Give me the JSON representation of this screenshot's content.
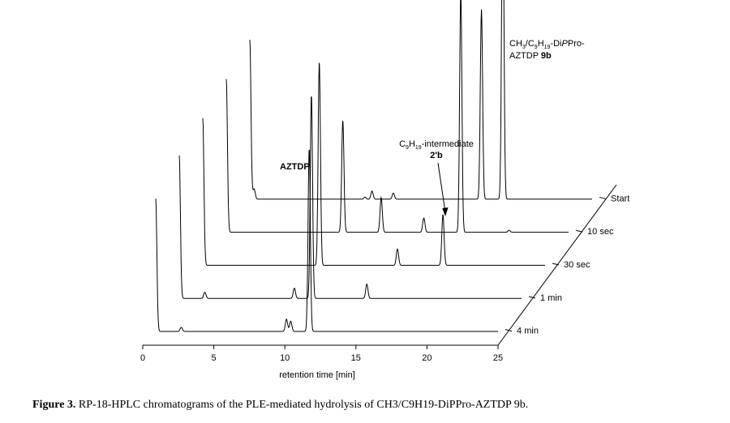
{
  "caption": {
    "label": "Figure 3.",
    "text": "RP-18-HPLC chromatograms of the PLE-mediated hydrolysis of CH3/C9H19-DiPPro-AZTDP 9b."
  },
  "chart_data": {
    "type": "line",
    "style": "3D stacked (waterfall) chromatograms",
    "xlabel": "retention time [min]",
    "xlim": [
      0,
      25
    ],
    "xticks": [
      0,
      5,
      10,
      15,
      20,
      25
    ],
    "grid": false,
    "series": [
      {
        "name": "4 min",
        "peaks": [
          {
            "x": 1.6,
            "h": 0.65
          },
          {
            "x": 3.4,
            "h": 0.02
          },
          {
            "x": 10.8,
            "h": 0.06
          },
          {
            "x": 11.1,
            "h": 0.05
          },
          {
            "x": 12.4,
            "h": 0.9
          }
        ]
      },
      {
        "name": "1 min",
        "peaks": [
          {
            "x": 1.6,
            "h": 0.7
          },
          {
            "x": 3.4,
            "h": 0.03
          },
          {
            "x": 9.7,
            "h": 0.05
          },
          {
            "x": 10.9,
            "h": 1.0
          },
          {
            "x": 14.8,
            "h": 0.07
          }
        ]
      },
      {
        "name": "30 sec",
        "peaks": [
          {
            "x": 1.6,
            "h": 0.72
          },
          {
            "x": 9.8,
            "h": 1.0
          },
          {
            "x": 15.3,
            "h": 0.08
          },
          {
            "x": 18.5,
            "h": 0.25
          }
        ]
      },
      {
        "name": "10 sec",
        "peaks": [
          {
            "x": 1.6,
            "h": 0.75
          },
          {
            "x": 9.8,
            "h": 0.55
          },
          {
            "x": 12.5,
            "h": 0.17
          },
          {
            "x": 15.5,
            "h": 0.07
          },
          {
            "x": 18.1,
            "h": 1.18
          },
          {
            "x": 21.5,
            "h": 0.01
          }
        ]
      },
      {
        "name": "Start",
        "peaks": [
          {
            "x": 1.6,
            "h": 0.78
          },
          {
            "x": 1.9,
            "h": 0.05
          },
          {
            "x": 9.7,
            "h": 0.01
          },
          {
            "x": 10.2,
            "h": 0.04
          },
          {
            "x": 11.7,
            "h": 0.03
          },
          {
            "x": 17.9,
            "h": 0.93
          },
          {
            "x": 19.4,
            "h": 1.6
          }
        ]
      }
    ],
    "annotations": [
      {
        "id": "aztdp",
        "text": "AZTDP",
        "bold": true
      },
      {
        "id": "intermediate",
        "line1": "C9H19-intermediate",
        "line2": "2'b",
        "line2_bold": true,
        "arrow": true
      },
      {
        "id": "product",
        "line1": "CH3/C9H19-DiPPro-",
        "line2": "AZTDP",
        "line2_suffix": "9b"
      }
    ]
  }
}
